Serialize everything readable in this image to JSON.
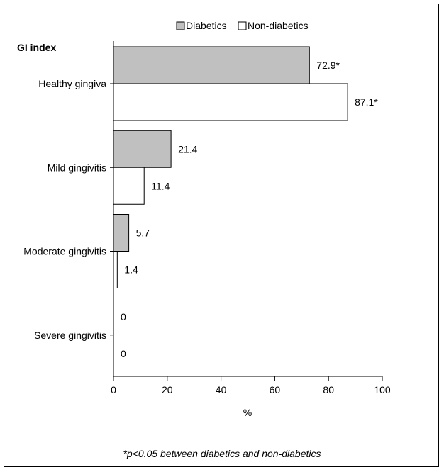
{
  "chart_data": {
    "type": "bar",
    "orientation": "horizontal",
    "index_label": "GI index",
    "categories": [
      "Healthy gingiva",
      "Mild gingivitis",
      "Moderate gingivitis",
      "Severe gingivitis"
    ],
    "series": [
      {
        "name": "Diabetics",
        "values": [
          72.9,
          21.4,
          5.7,
          0
        ],
        "labels": [
          "72.9*",
          "21.4",
          "5.7",
          "0"
        ],
        "color": "#c0c0c0"
      },
      {
        "name": "Non-diabetics",
        "values": [
          87.1,
          11.4,
          1.4,
          0
        ],
        "labels": [
          "87.1*",
          "11.4",
          "1.4",
          "0"
        ],
        "color": "#ffffff"
      }
    ],
    "xlabel": "%",
    "xlim": [
      0,
      100
    ],
    "xticks": [
      "0",
      "20",
      "40",
      "60",
      "80",
      "100"
    ],
    "legend": "top",
    "grid": false
  },
  "footnote": "*p<0.05 between diabetics and non-diabetics"
}
